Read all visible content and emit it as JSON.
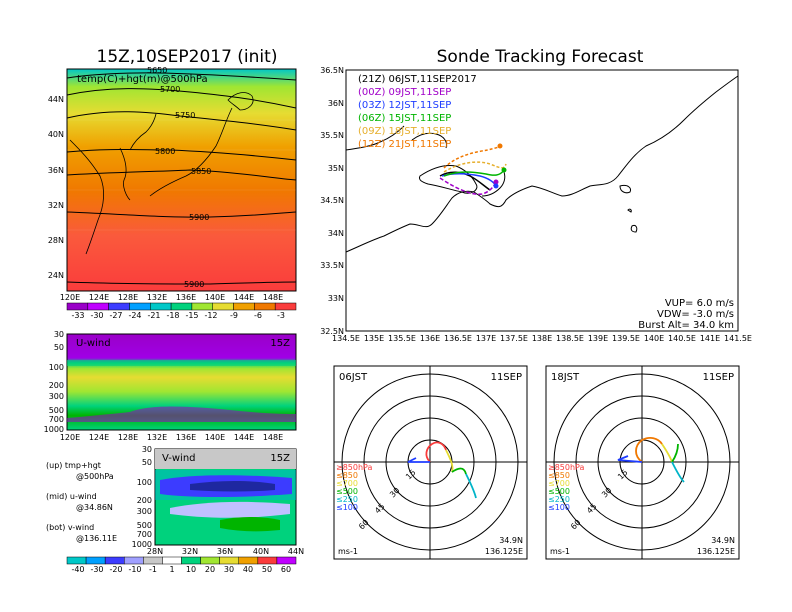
{
  "page": {
    "left_title": "15Z,10SEP2017 (init)",
    "right_title": "Sonde Tracking Forecast"
  },
  "map500": {
    "label": "temp(C)+hgt(m)@500hPa",
    "xticks": [
      "120E",
      "124E",
      "128E",
      "132E",
      "136E",
      "140E",
      "144E",
      "148E"
    ],
    "yticks": [
      "44N",
      "40N",
      "36N",
      "32N",
      "28N",
      "24N"
    ],
    "contours": [
      "5650",
      "5700",
      "5750",
      "5800",
      "5850",
      "5900",
      "5900"
    ],
    "colorbar_labels": [
      "-33",
      "-30",
      "-27",
      "-24",
      "-21",
      "-18",
      "-15",
      "-12",
      "-9",
      "-6",
      "-3"
    ],
    "colors": [
      "#9a00c8",
      "#c000ff",
      "#3c3cff",
      "#00a0ff",
      "#00c8c8",
      "#00d27d",
      "#a0e632",
      "#e6dc32",
      "#f0a000",
      "#f07800",
      "#fa3c3c"
    ]
  },
  "uwind": {
    "label": "U-wind",
    "time": "15Z",
    "yticks": [
      "30",
      "50",
      "100",
      "200",
      "300",
      "500",
      "700",
      "1000"
    ],
    "xticks": [
      "120E",
      "124E",
      "128E",
      "132E",
      "136E",
      "140E",
      "144E",
      "148E"
    ]
  },
  "vwind": {
    "label": "V-wind",
    "time": "15Z",
    "yticks": [
      "30",
      "50",
      "100",
      "200",
      "300",
      "500",
      "700",
      "1000"
    ],
    "xticks": [
      "28N",
      "32N",
      "36N",
      "40N",
      "44N"
    ]
  },
  "wind_colorbar": {
    "labels": [
      "-40",
      "-30",
      "-20",
      "-10",
      "-1",
      "1",
      "10",
      "20",
      "30",
      "40",
      "50",
      "60"
    ],
    "colors": [
      "#00c8c8",
      "#00a0ff",
      "#3c3cff",
      "#a0a0ff",
      "#c8c8c8",
      "#ffffff",
      "#00d27d",
      "#a0e632",
      "#e6dc32",
      "#f0a000",
      "#fa3c3c",
      "#c000ff"
    ]
  },
  "notes": [
    "(up) tmp+hgt",
    "@500hPa",
    "(mid) u-wind",
    "@34.86N",
    "(bot) v-wind",
    "@136.11E"
  ],
  "track_map": {
    "xticks": [
      "134.5E",
      "135E",
      "135.5E",
      "136E",
      "136.5E",
      "137E",
      "137.5E",
      "138E",
      "138.5E",
      "139E",
      "139.5E",
      "140E",
      "140.5E",
      "141E",
      "141.5E"
    ],
    "yticks": [
      "36.5N",
      "36N",
      "35.5N",
      "35N",
      "34.5N",
      "34N",
      "33.5N",
      "33N",
      "32.5N"
    ],
    "legend": [
      {
        "text": "(21Z)  06JST,11SEP2017",
        "color": "#000000"
      },
      {
        "text": "(00Z)  09JST,11SEP",
        "color": "#a000c8"
      },
      {
        "text": "(03Z)  12JST,11SEP",
        "color": "#1e3cff"
      },
      {
        "text": "(06Z)  15JST,11SEP",
        "color": "#00b400"
      },
      {
        "text": "(09Z)  18JST,11SEP",
        "color": "#e6af2d"
      },
      {
        "text": "(12Z)  21JST,11SEP",
        "color": "#f07800"
      }
    ],
    "params": [
      "VUP=  6.0  m/s",
      "VDW= -3.0  m/s",
      "Burst Alt=  34.0  km"
    ]
  },
  "hodo1": {
    "time": "06JST",
    "date": "11SEP",
    "rings": [
      "15",
      "30",
      "45",
      "60"
    ],
    "units": "ms-1",
    "lat": "34.9N",
    "lon": "136.125E",
    "levels": [
      "≥850hPa",
      "≤850",
      "≤700",
      "≤500",
      "≤250",
      "≤100"
    ],
    "level_colors": [
      "#fa3c3c",
      "#f07800",
      "#e6dc32",
      "#00b400",
      "#00b4c8",
      "#1e3cff"
    ]
  },
  "hodo2": {
    "time": "18JST",
    "date": "11SEP",
    "rings": [
      "15",
      "30",
      "45",
      "60"
    ],
    "units": "ms-1",
    "lat": "34.9N",
    "lon": "136.125E",
    "levels": [
      "≥850hPa",
      "≤850",
      "≤700",
      "≤500",
      "≤250",
      "≤100"
    ],
    "level_colors": [
      "#fa3c3c",
      "#f07800",
      "#e6dc32",
      "#00b400",
      "#00b4c8",
      "#1e3cff"
    ]
  }
}
